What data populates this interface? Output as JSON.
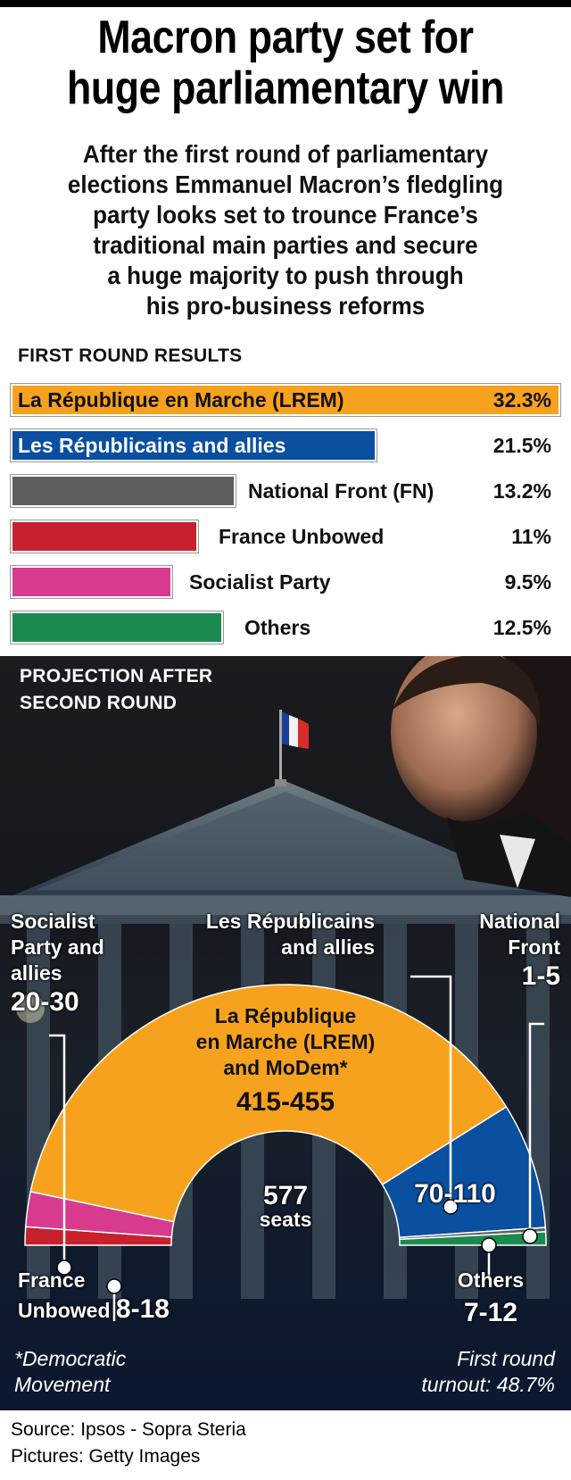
{
  "headline": [
    "Macron party set for",
    "huge parliamentary win"
  ],
  "subhead": [
    "After the first round of parliamentary",
    "elections Emmanuel Macron’s fledgling",
    "party looks set to trounce France’s",
    "traditional main parties and secure",
    "a huge majority to push through",
    "his pro-business reforms"
  ],
  "chart_data": [
    {
      "type": "bar",
      "title": "First Round Results",
      "categories": [
        "La République en Marche (LREM)",
        "Les Républicains and allies",
        "National Front (FN)",
        "France Unbowed",
        "Socialist Party",
        "Others"
      ],
      "values": [
        32.3,
        21.5,
        13.2,
        11,
        9.5,
        12.5
      ],
      "value_labels": [
        "32.3%",
        "21.5%",
        "13.2%",
        "11%",
        "9.5%",
        "12.5%"
      ],
      "colors": [
        "#f7a21e",
        "#0a4fa0",
        "#5e5e5e",
        "#c8202c",
        "#d83a8e",
        "#1a8a4e"
      ],
      "xlim": [
        0,
        32.3
      ]
    },
    {
      "type": "pie",
      "variant": "hemicycle",
      "title": "Projection After Second Round",
      "total_seats_value": "577",
      "total_seats_unit": "seats",
      "categories": [
        "France Unbowed",
        "Socialist Party and allies",
        "La République en Marche (LREM) and MoDem*",
        "Les Républicains and allies",
        "National Front",
        "Others"
      ],
      "seat_ranges": [
        "8-18",
        "20-30",
        "415-455",
        "70-110",
        "1-5",
        "7-12"
      ],
      "seat_midpoints": [
        13,
        25,
        435,
        90,
        3,
        9.5
      ],
      "colors": [
        "#c8202c",
        "#d83a8e",
        "#f7a21e",
        "#0a4fa0",
        "#5e5e5e",
        "#1a8a4e"
      ],
      "labels": {
        "france_unbowed": [
          "France",
          "Unbowed"
        ],
        "socialist": [
          "Socialist",
          "Party and",
          "allies"
        ],
        "lrem": [
          "La République",
          "en Marche (LREM)",
          "and MoDem*"
        ],
        "republicains": [
          "Les Républicains",
          "and allies"
        ],
        "national_front": [
          "National",
          "Front"
        ],
        "others": [
          "Others"
        ]
      }
    }
  ],
  "footnote": [
    "*Democratic",
    "Movement"
  ],
  "turnout": [
    "First round",
    "turnout: 48.7%"
  ],
  "source": "Source: Ipsos - Sopra Steria",
  "pictures": "Pictures: Getty Images"
}
